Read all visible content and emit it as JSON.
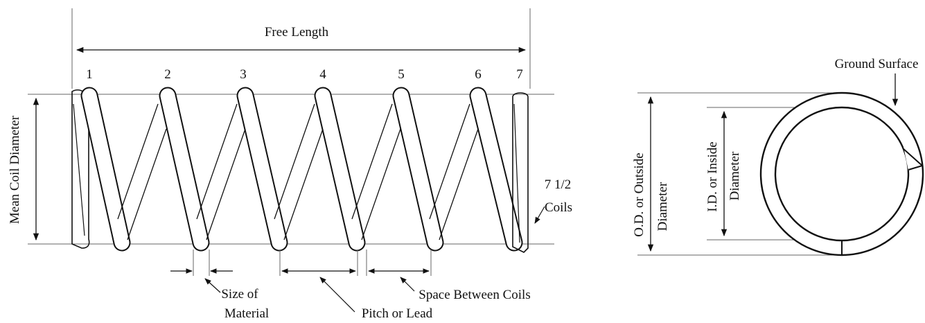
{
  "spring_side_view": {
    "free_length_label": "Free Length",
    "mean_coil_diameter_label": "Mean Coil Diameter",
    "coil_numbers": [
      "1",
      "2",
      "3",
      "4",
      "5",
      "6",
      "7"
    ],
    "total_coils_line1": "7 1/2",
    "total_coils_line2": "Coils",
    "size_of_material_line1": "Size of",
    "size_of_material_line2": "Material",
    "pitch_label": "Pitch or Lead",
    "space_between_label": "Space Between Coils"
  },
  "spring_end_view": {
    "ground_surface_label": "Ground Surface",
    "od_line1": "O.D. or Outside",
    "od_line2": "Diameter",
    "id_line1": "I.D. or Inside",
    "id_line2": "Diameter"
  },
  "colors": {
    "ink": "#111111",
    "guide": "#666666"
  }
}
